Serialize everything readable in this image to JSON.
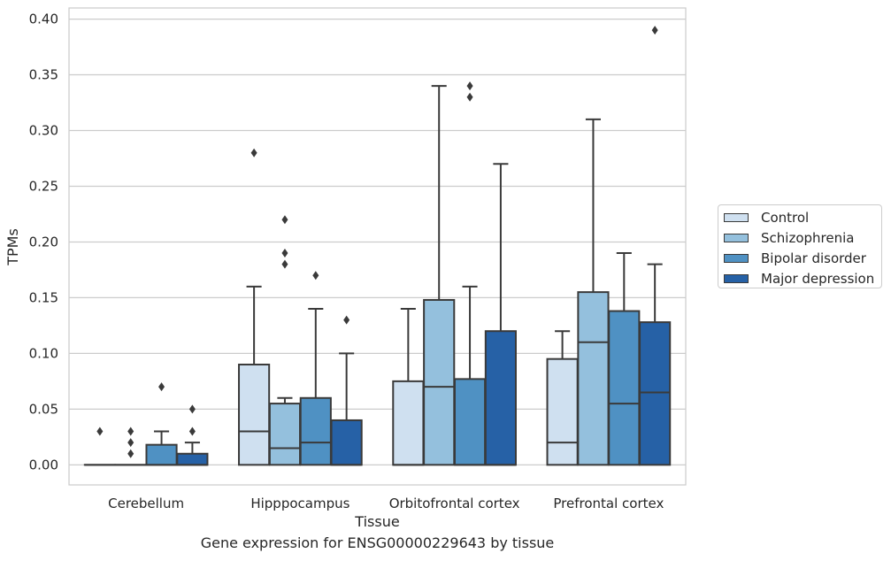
{
  "caption": "Gene expression for ENSG00000229643 by tissue",
  "chart_data": {
    "type": "box",
    "xlabel": "Tissue",
    "ylabel": "TPMs",
    "ylim": [
      -0.018,
      0.41
    ],
    "yticks": [
      "0.00",
      "0.05",
      "0.10",
      "0.15",
      "0.20",
      "0.25",
      "0.30",
      "0.35",
      "0.40"
    ],
    "grid": "horizontal",
    "legend_position": "right",
    "categories": [
      "Cerebellum",
      "Hipppocampus",
      "Orbitofrontal cortex",
      "Prefrontal cortex"
    ],
    "series": [
      {
        "name": "Control",
        "color": "#cfe0f0",
        "boxes": [
          {
            "whislo": 0,
            "q1": 0,
            "med": 0,
            "q3": 0,
            "whishi": 0,
            "fliers": [
              0.03
            ]
          },
          {
            "whislo": 0,
            "q1": 0,
            "med": 0.03,
            "q3": 0.09,
            "whishi": 0.16,
            "fliers": [
              0.28
            ]
          },
          {
            "whislo": 0,
            "q1": 0,
            "med": 0,
            "q3": 0.075,
            "whishi": 0.14,
            "fliers": []
          },
          {
            "whislo": 0,
            "q1": 0,
            "med": 0.02,
            "q3": 0.095,
            "whishi": 0.12,
            "fliers": []
          }
        ]
      },
      {
        "name": "Schizophrenia",
        "color": "#94c0dd",
        "boxes": [
          {
            "whislo": 0,
            "q1": 0,
            "med": 0,
            "q3": 0,
            "whishi": 0,
            "fliers": [
              0.01,
              0.02,
              0.03
            ]
          },
          {
            "whislo": 0,
            "q1": 0,
            "med": 0.015,
            "q3": 0.055,
            "whishi": 0.06,
            "fliers": [
              0.18,
              0.19,
              0.22
            ]
          },
          {
            "whislo": 0,
            "q1": 0,
            "med": 0.07,
            "q3": 0.148,
            "whishi": 0.34,
            "fliers": []
          },
          {
            "whislo": 0,
            "q1": 0,
            "med": 0.11,
            "q3": 0.155,
            "whishi": 0.31,
            "fliers": []
          }
        ]
      },
      {
        "name": "Bipolar disorder",
        "color": "#4f91c3",
        "boxes": [
          {
            "whislo": 0,
            "q1": 0,
            "med": 0,
            "q3": 0.018,
            "whishi": 0.03,
            "fliers": [
              0.07
            ]
          },
          {
            "whislo": 0,
            "q1": 0,
            "med": 0.02,
            "q3": 0.06,
            "whishi": 0.14,
            "fliers": [
              0.17
            ]
          },
          {
            "whislo": 0,
            "q1": 0,
            "med": 0,
            "q3": 0.077,
            "whishi": 0.16,
            "fliers": [
              0.33,
              0.34
            ]
          },
          {
            "whislo": 0,
            "q1": 0,
            "med": 0.055,
            "q3": 0.138,
            "whishi": 0.19,
            "fliers": []
          }
        ]
      },
      {
        "name": "Major depression",
        "color": "#2661a6",
        "boxes": [
          {
            "whislo": 0,
            "q1": 0,
            "med": 0,
            "q3": 0.01,
            "whishi": 0.02,
            "fliers": [
              0.03,
              0.05
            ]
          },
          {
            "whislo": 0,
            "q1": 0,
            "med": 0,
            "q3": 0.04,
            "whishi": 0.1,
            "fliers": [
              0.13
            ]
          },
          {
            "whislo": 0,
            "q1": 0,
            "med": 0,
            "q3": 0.12,
            "whishi": 0.27,
            "fliers": []
          },
          {
            "whislo": 0,
            "q1": 0,
            "med": 0.065,
            "q3": 0.128,
            "whishi": 0.18,
            "fliers": [
              0.39
            ]
          }
        ]
      }
    ]
  }
}
